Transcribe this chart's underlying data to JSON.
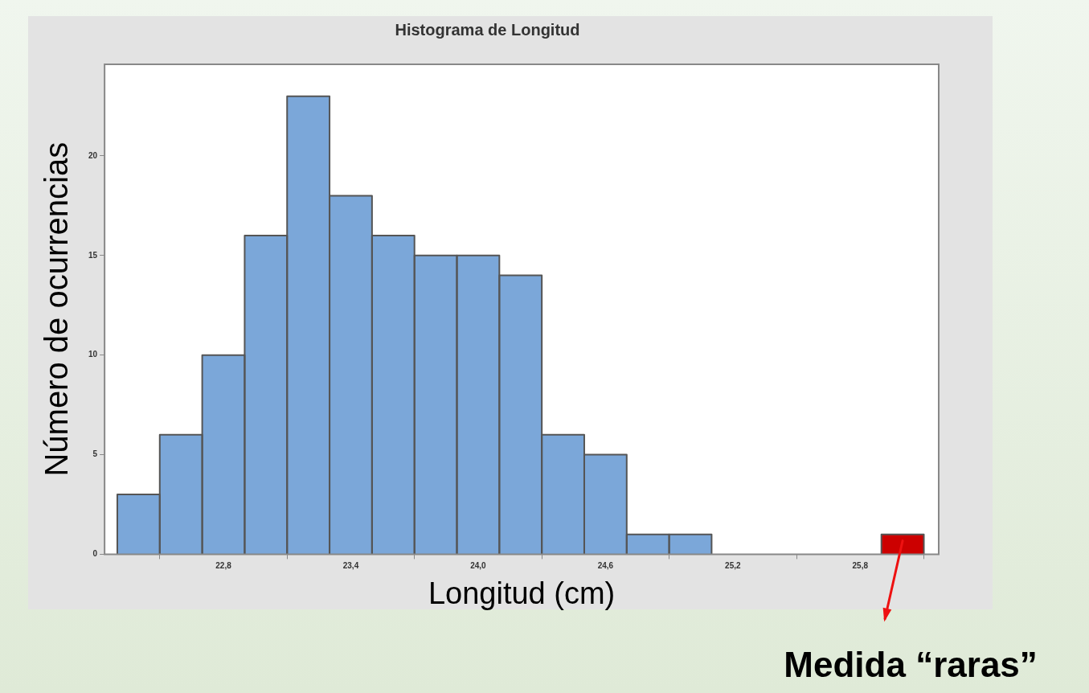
{
  "chart_data": {
    "type": "histogram",
    "title": "Histograma de Longitud",
    "xlabel": "Longitud (cm)",
    "ylabel": "Número de ocurrencias",
    "bins": [
      22.3,
      22.5,
      22.7,
      22.9,
      23.1,
      23.3,
      23.5,
      23.7,
      23.9,
      24.1,
      24.3,
      24.5,
      24.7,
      24.9,
      25.1,
      25.3,
      25.5,
      25.7,
      25.9,
      26.1
    ],
    "values": [
      3,
      6,
      10,
      16,
      23,
      18,
      16,
      15,
      15,
      14,
      6,
      5,
      1,
      1,
      0,
      0,
      0,
      0,
      1
    ],
    "colors": [
      "#7ba7d9",
      "#7ba7d9",
      "#7ba7d9",
      "#7ba7d9",
      "#7ba7d9",
      "#7ba7d9",
      "#7ba7d9",
      "#7ba7d9",
      "#7ba7d9",
      "#7ba7d9",
      "#7ba7d9",
      "#7ba7d9",
      "#7ba7d9",
      "#7ba7d9",
      "#7ba7d9",
      "#7ba7d9",
      "#7ba7d9",
      "#7ba7d9",
      "#cc0000"
    ],
    "xlim": [
      22.24,
      26.17
    ],
    "ylim": [
      0,
      24.6
    ],
    "xticks": [
      {
        "value": 22.8,
        "label": "22,8"
      },
      {
        "value": 23.4,
        "label": "23,4"
      },
      {
        "value": 24.0,
        "label": "24,0"
      },
      {
        "value": 24.6,
        "label": "24,6"
      },
      {
        "value": 25.2,
        "label": "25,2"
      },
      {
        "value": 25.8,
        "label": "25,8"
      }
    ],
    "yticks": [
      0,
      5,
      10,
      15,
      20
    ],
    "grid": false,
    "legend": false,
    "annotations": [
      {
        "text": "Medida “raras”",
        "x": 26.0,
        "y": 1
      }
    ]
  }
}
